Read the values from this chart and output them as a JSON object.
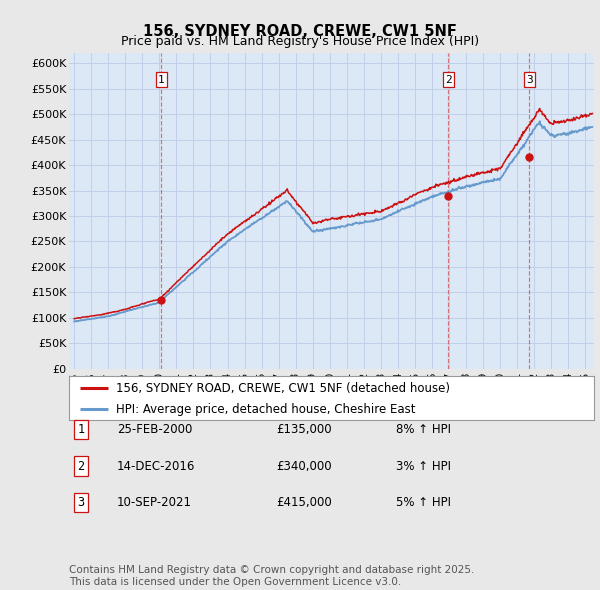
{
  "title": "156, SYDNEY ROAD, CREWE, CW1 5NF",
  "subtitle": "Price paid vs. HM Land Registry's House Price Index (HPI)",
  "ylim": [
    0,
    620000
  ],
  "yticks": [
    0,
    50000,
    100000,
    150000,
    200000,
    250000,
    300000,
    350000,
    400000,
    450000,
    500000,
    550000,
    600000
  ],
  "ytick_labels": [
    "£0",
    "£50K",
    "£100K",
    "£150K",
    "£200K",
    "£250K",
    "£300K",
    "£350K",
    "£400K",
    "£450K",
    "£500K",
    "£550K",
    "£600K"
  ],
  "xlim_start": 1994.7,
  "xlim_end": 2025.5,
  "background_color": "#e8e8e8",
  "plot_bg_color": "#dce8f5",
  "grid_color": "#c0d0e8",
  "line_color_hpi": "#6699cc",
  "line_color_price": "#cc1111",
  "vline_color": "#cc1111",
  "vline_alpha": 0.55,
  "sale_dates": [
    2000.12,
    2016.96,
    2021.71
  ],
  "sale_labels": [
    "1",
    "2",
    "3"
  ],
  "sale_prices": [
    135000,
    340000,
    415000
  ],
  "legend_label_price": "156, SYDNEY ROAD, CREWE, CW1 5NF (detached house)",
  "legend_label_hpi": "HPI: Average price, detached house, Cheshire East",
  "table_rows": [
    [
      "1",
      "25-FEB-2000",
      "£135,000",
      "8% ↑ HPI"
    ],
    [
      "2",
      "14-DEC-2016",
      "£340,000",
      "3% ↑ HPI"
    ],
    [
      "3",
      "10-SEP-2021",
      "£415,000",
      "5% ↑ HPI"
    ]
  ],
  "footer_text": "Contains HM Land Registry data © Crown copyright and database right 2025.\nThis data is licensed under the Open Government Licence v3.0.",
  "title_fontsize": 10.5,
  "subtitle_fontsize": 9,
  "tick_fontsize": 8,
  "legend_fontsize": 8.5,
  "table_fontsize": 8.5,
  "footer_fontsize": 7.5
}
